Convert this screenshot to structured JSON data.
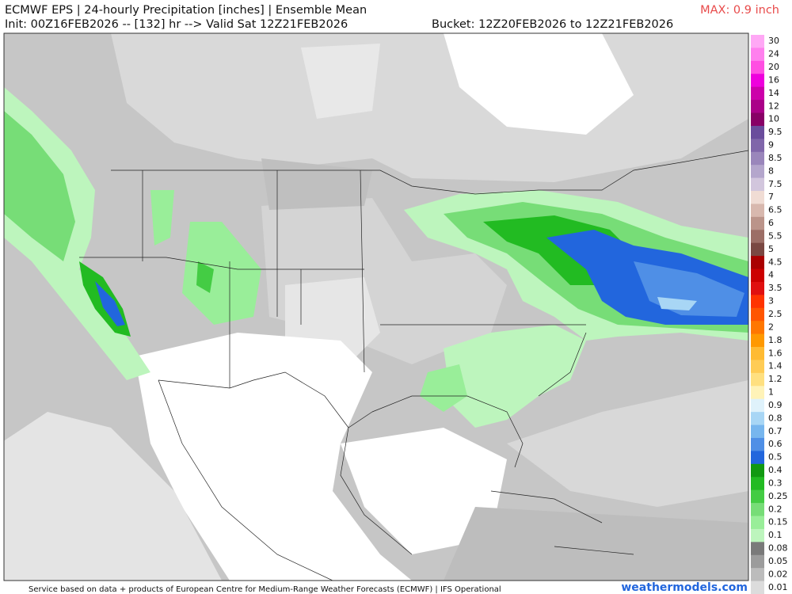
{
  "header": {
    "title": "ECMWF EPS | 24-hourly Precipitation [inches] | Ensemble Mean",
    "init": "Init: 00Z16FEB2026 -- [132] hr --> Valid Sat 12Z21FEB2026",
    "bucket": "Bucket: 12Z20FEB2026 to 12Z21FEB2026",
    "max": "MAX: 0.9 inch"
  },
  "colorbar": {
    "levels": [
      {
        "label": "30",
        "color": "#ffa8f5"
      },
      {
        "label": "24",
        "color": "#ff80ee"
      },
      {
        "label": "20",
        "color": "#ff4ee2"
      },
      {
        "label": "16",
        "color": "#ee00dd"
      },
      {
        "label": "14",
        "color": "#cc00aa"
      },
      {
        "label": "12",
        "color": "#aa0088"
      },
      {
        "label": "10",
        "color": "#880066"
      },
      {
        "label": "9.5",
        "color": "#6a4c9c"
      },
      {
        "label": "9",
        "color": "#8066aa"
      },
      {
        "label": "8.5",
        "color": "#9a86bb"
      },
      {
        "label": "8",
        "color": "#b4a6cc"
      },
      {
        "label": "7.5",
        "color": "#d2c6dd"
      },
      {
        "label": "7",
        "color": "#f0dcd4"
      },
      {
        "label": "6.5",
        "color": "#d8b8ae"
      },
      {
        "label": "6",
        "color": "#bb948a"
      },
      {
        "label": "5.5",
        "color": "#9c6e66"
      },
      {
        "label": "5",
        "color": "#7a4842"
      },
      {
        "label": "4.5",
        "color": "#aa0000"
      },
      {
        "label": "4",
        "color": "#cc0000"
      },
      {
        "label": "3.5",
        "color": "#e01010"
      },
      {
        "label": "3",
        "color": "#ff3300"
      },
      {
        "label": "2.5",
        "color": "#ff5500"
      },
      {
        "label": "2",
        "color": "#ff7700"
      },
      {
        "label": "1.8",
        "color": "#ff9900"
      },
      {
        "label": "1.6",
        "color": "#ffbb33"
      },
      {
        "label": "1.4",
        "color": "#ffcc55"
      },
      {
        "label": "1.2",
        "color": "#ffe080"
      },
      {
        "label": "1",
        "color": "#fff3b8"
      },
      {
        "label": "0.9",
        "color": "#dff2fb"
      },
      {
        "label": "0.8",
        "color": "#a8d6f5"
      },
      {
        "label": "0.7",
        "color": "#77b6ee"
      },
      {
        "label": "0.6",
        "color": "#4f8fe6"
      },
      {
        "label": "0.5",
        "color": "#2266dd"
      },
      {
        "label": "0.4",
        "color": "#119911"
      },
      {
        "label": "0.3",
        "color": "#22bb22"
      },
      {
        "label": "0.25",
        "color": "#44cc44"
      },
      {
        "label": "0.2",
        "color": "#77dd77"
      },
      {
        "label": "0.15",
        "color": "#99ee99"
      },
      {
        "label": "0.1",
        "color": "#bdf5bd"
      },
      {
        "label": "0.08",
        "color": "#7a7a7a"
      },
      {
        "label": "0.05",
        "color": "#9c9c9c"
      },
      {
        "label": "0.02",
        "color": "#bcbcbc"
      },
      {
        "label": "0.01",
        "color": "#dcdcdc"
      }
    ]
  },
  "footer": {
    "credit": "Service based on data + products of European Centre for Medium-Range Weather Forecasts (ECMWF) | IFS Operational",
    "site": "weathermodels.com"
  }
}
